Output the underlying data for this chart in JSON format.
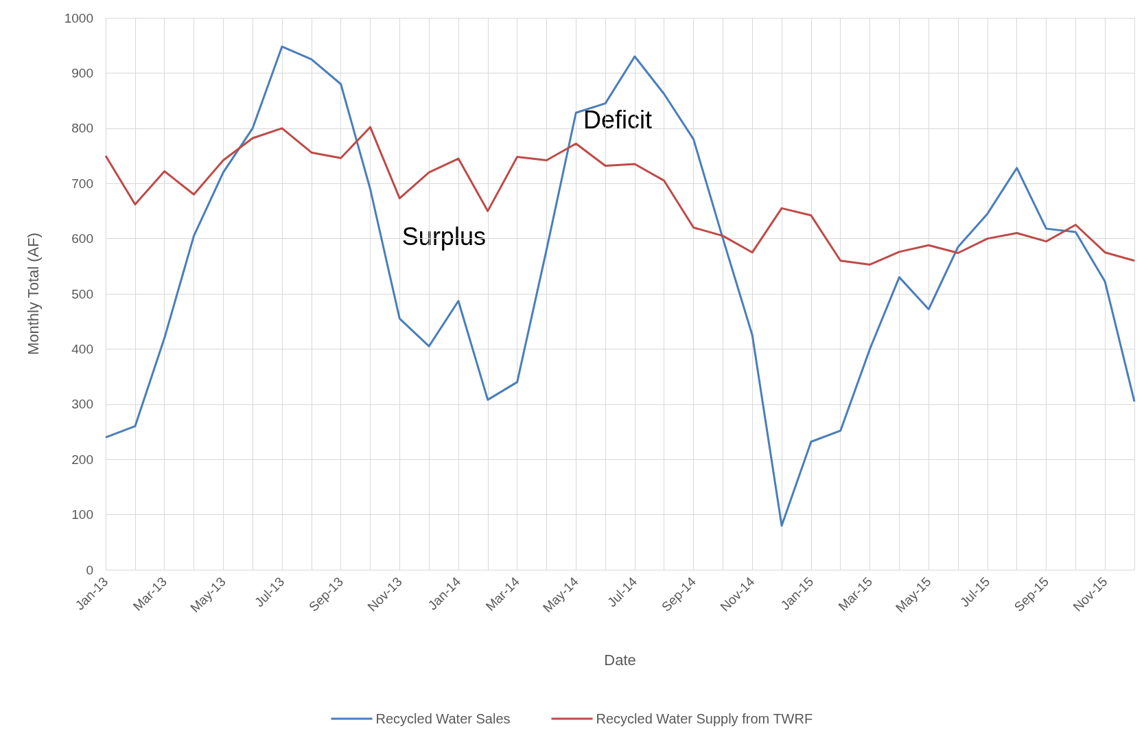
{
  "chart_data": {
    "type": "line",
    "xlabel": "Date",
    "ylabel": "Monthly Total (AF)",
    "categories": [
      "Jan-13",
      null,
      "Mar-13",
      null,
      "May-13",
      null,
      "Jul-13",
      null,
      "Sep-13",
      null,
      "Nov-13",
      null,
      "Jan-14",
      null,
      "Mar-14",
      null,
      "May-14",
      null,
      "Jul-14",
      null,
      "Sep-14",
      null,
      "Nov-14",
      null,
      "Jan-15",
      null,
      "Mar-15",
      null,
      "May-15",
      null,
      "Jul-15",
      null,
      "Sep-15",
      null,
      "Nov-15",
      null
    ],
    "series": [
      {
        "name": "Recycled Water Sales",
        "color": "#4a7ebb",
        "values": [
          240,
          260,
          420,
          605,
          720,
          800,
          948,
          925,
          880,
          690,
          455,
          405,
          487,
          308,
          340,
          580,
          828,
          845,
          930,
          862,
          780,
          600,
          425,
          80,
          232,
          252,
          400,
          530,
          472,
          585,
          645,
          728,
          618,
          612,
          522,
          305
        ]
      },
      {
        "name": "Recycled Water Supply from TWRF",
        "color": "#be4b48",
        "values": [
          750,
          662,
          722,
          680,
          742,
          782,
          800,
          756,
          746,
          802,
          673,
          720,
          745,
          650,
          748,
          742,
          772,
          732,
          735,
          705,
          620,
          605,
          575,
          655,
          642,
          560,
          553,
          576,
          588,
          574,
          600,
          610,
          595,
          625,
          575,
          560
        ]
      }
    ],
    "ylim": [
      0,
      1000
    ],
    "yticks": [
      0,
      100,
      200,
      300,
      400,
      500,
      600,
      700,
      800,
      900,
      1000
    ],
    "grid": true,
    "legend": "bottom",
    "marker": "none",
    "line_style": "solid",
    "annotations": [
      "Surplus",
      "Deficit"
    ]
  }
}
